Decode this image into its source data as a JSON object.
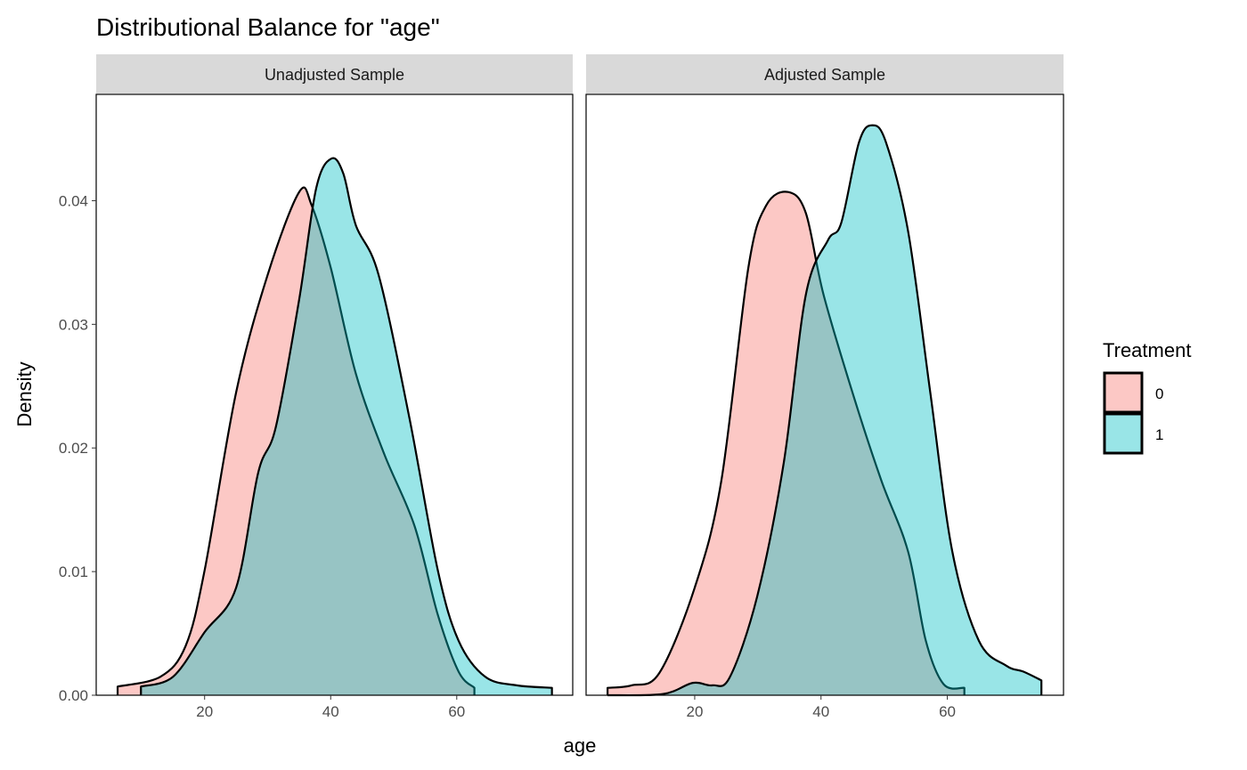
{
  "chart_data": {
    "type": "area",
    "title": "Distributional Balance for \"age\"",
    "xlabel": "age",
    "ylabel": "Density",
    "xlim": [
      2.8,
      78.4
    ],
    "ylim": [
      0,
      0.0486
    ],
    "x_ticks": [
      20,
      40,
      60
    ],
    "y_ticks": [
      0,
      0.01,
      0.02,
      0.03,
      0.04
    ],
    "y_tick_labels": [
      "0.00",
      "0.01",
      "0.02",
      "0.03",
      "0.04"
    ],
    "grid": false,
    "legend": {
      "title": "Treatment",
      "position": "right",
      "entries": [
        "0",
        "1"
      ]
    },
    "colors": {
      "0": "#F8766D",
      "1": "#00BFC4"
    },
    "fill_opacity": 0.4,
    "panels": [
      {
        "title": "Unadjusted Sample",
        "series": [
          {
            "name": "0",
            "points": [
              [
                6.2,
                0.0007
              ],
              [
                13,
                0.0015
              ],
              [
                17,
                0.004
              ],
              [
                20,
                0.0101
              ],
              [
                25,
                0.0245
              ],
              [
                30,
                0.034
              ],
              [
                35,
                0.0407
              ],
              [
                37,
                0.0396
              ],
              [
                40,
                0.0346
              ],
              [
                44,
                0.026
              ],
              [
                48.5,
                0.0195
              ],
              [
                53.3,
                0.0137
              ],
              [
                57,
                0.0065
              ],
              [
                60.3,
                0.0019
              ],
              [
                62.8,
                0.0006
              ]
            ]
          },
          {
            "name": "1",
            "points": [
              [
                9.9,
                0.0007
              ],
              [
                15,
                0.0015
              ],
              [
                20,
                0.0051
              ],
              [
                25,
                0.0087
              ],
              [
                28.5,
                0.018
              ],
              [
                31.3,
                0.0217
              ],
              [
                35,
                0.032
              ],
              [
                37.7,
                0.041
              ],
              [
                40.1,
                0.0434
              ],
              [
                42,
                0.0422
              ],
              [
                44,
                0.038
              ],
              [
                47.6,
                0.034
              ],
              [
                52.5,
                0.0224
              ],
              [
                57,
                0.0101
              ],
              [
                60.3,
                0.0044
              ],
              [
                64.5,
                0.0015
              ],
              [
                69.5,
                0.0008
              ],
              [
                75.1,
                0.0006
              ]
            ]
          }
        ]
      },
      {
        "title": "Adjusted Sample",
        "series": [
          {
            "name": "0",
            "points": [
              [
                6.2,
                0.0006
              ],
              [
                10,
                0.0008
              ],
              [
                14.4,
                0.0018
              ],
              [
                20,
                0.0087
              ],
              [
                24.2,
                0.0173
              ],
              [
                28.5,
                0.0346
              ],
              [
                31.3,
                0.0396
              ],
              [
                34.8,
                0.0407
              ],
              [
                37.6,
                0.039
              ],
              [
                40.4,
                0.0324
              ],
              [
                45.4,
                0.0238
              ],
              [
                49.6,
                0.0173
              ],
              [
                53.8,
                0.0116
              ],
              [
                56.6,
                0.0044
              ],
              [
                59.4,
                0.0009
              ],
              [
                62.7,
                0.0006
              ]
            ]
          },
          {
            "name": "1",
            "points": [
              [
                6.2,
                0.0
              ],
              [
                15,
                0.0001
              ],
              [
                19.7,
                0.001
              ],
              [
                22.8,
                0.0008
              ],
              [
                25.6,
                0.0015
              ],
              [
                29.9,
                0.008
              ],
              [
                34.1,
                0.0188
              ],
              [
                37.6,
                0.0324
              ],
              [
                41.1,
                0.0368
              ],
              [
                43.2,
                0.0382
              ],
              [
                46,
                0.0447
              ],
              [
                48.1,
                0.0461
              ],
              [
                50.3,
                0.0447
              ],
              [
                53.8,
                0.0375
              ],
              [
                57.3,
                0.0245
              ],
              [
                60.8,
                0.0116
              ],
              [
                65,
                0.0044
              ],
              [
                69.3,
                0.0024
              ],
              [
                72.1,
                0.0019
              ],
              [
                74.9,
                0.0012
              ]
            ]
          }
        ]
      }
    ]
  }
}
